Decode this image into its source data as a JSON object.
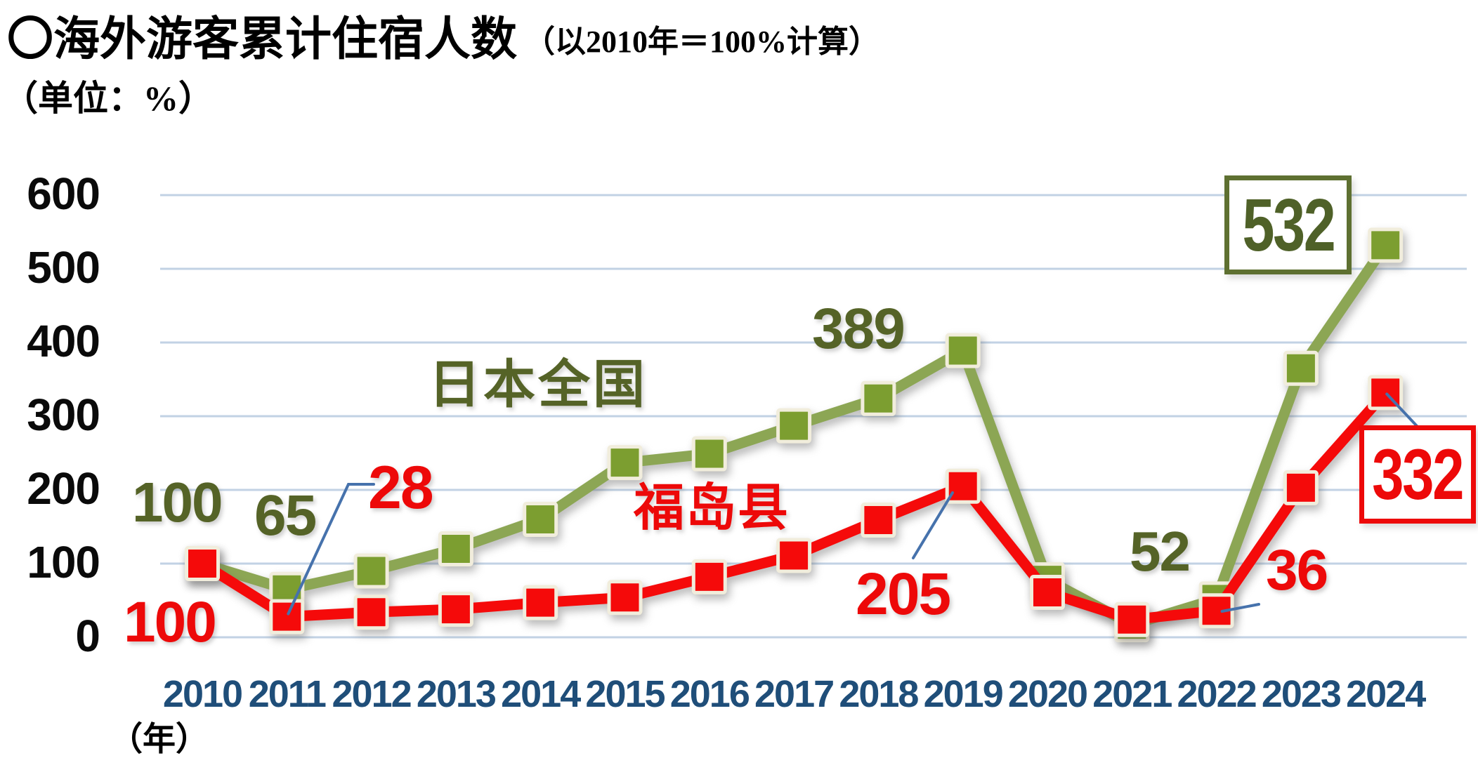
{
  "title": {
    "main": "〇海外游客累计住宿人数",
    "paren": "（以2010年＝100%计算）"
  },
  "unit_label": "（单位：%）",
  "x_axis_unit_label": "（年）",
  "chart_data": {
    "type": "line",
    "title": "海外游客累计住宿人数（以2010年＝100%计算）",
    "ylabel": "%",
    "ylim": [
      0,
      600
    ],
    "yticks": [
      600,
      500,
      400,
      300,
      200,
      100,
      0
    ],
    "grid": true,
    "x": [
      "2010",
      "2011",
      "2012",
      "2013",
      "2014",
      "2015",
      "2016",
      "2017",
      "2018",
      "2019",
      "2020",
      "2021",
      "2022",
      "2023",
      "2024"
    ],
    "series": [
      {
        "name": "日本全国",
        "line_color": "#8CA654",
        "marker_color": "#7C9E30",
        "values": [
          100,
          65,
          90,
          120,
          160,
          237,
          249,
          287,
          324,
          389,
          78,
          17,
          52,
          365,
          532
        ],
        "labeled_points": {
          "2010": 100,
          "2011": 65,
          "2019": 389,
          "2022": 52,
          "2024": 532
        }
      },
      {
        "name": "福岛县",
        "line_color": "#F50A0A",
        "marker_color": "#F50A0A",
        "values": [
          100,
          28,
          34,
          38,
          47,
          54,
          82,
          111,
          159,
          205,
          61,
          24,
          36,
          203,
          332
        ],
        "labeled_points": {
          "2010": 100,
          "2011": 28,
          "2019": 205,
          "2022": 36,
          "2024": 332
        }
      }
    ],
    "legend_position": "inline-labels"
  },
  "annotations": {
    "green_2010": "100",
    "green_2011": "65",
    "green_2019": "389",
    "green_2022": "52",
    "green_2024_boxed": "532",
    "red_2010": "100",
    "red_2011": "28",
    "red_2019": "205",
    "red_2022": "36",
    "red_2024_boxed": "332",
    "series_green": "日本全国",
    "series_red": "福岛县"
  },
  "colors": {
    "green_line": "#8CA654",
    "green_marker": "#7C9E30",
    "green_text": "#556327",
    "green_box_border": "#5E7031",
    "red": "#F50A0A",
    "red_text": "#ED0909",
    "marker_border": "#F1EDDC",
    "gridline": "#C2D2E4",
    "year_label": "#1F4E79",
    "callout_blue": "#4672AC"
  }
}
